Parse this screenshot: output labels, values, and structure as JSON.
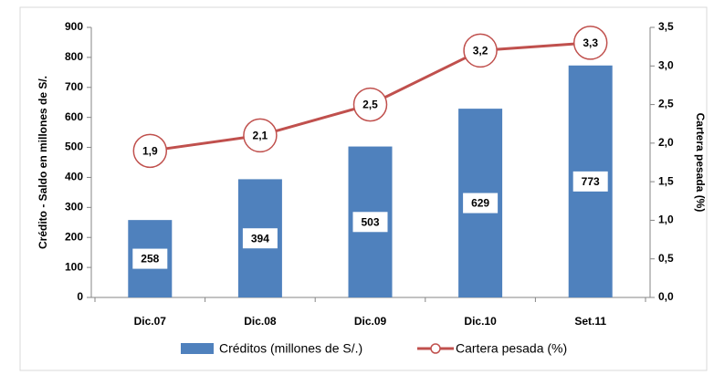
{
  "chart_data": {
    "type": "bar",
    "categories": [
      "Dic.07",
      "Dic.08",
      "Dic.09",
      "Dic.10",
      "Set.11"
    ],
    "series": [
      {
        "name": "Créditos (millones de S/.)",
        "color": "#4f81bd",
        "values": [
          258,
          394,
          503,
          629,
          773
        ]
      },
      {
        "name": "Cartera pesada (%)",
        "type": "line",
        "color": "#c0504d",
        "axis": "y2",
        "values": [
          1.9,
          2.1,
          2.5,
          3.2,
          3.3
        ],
        "value_labels": [
          "1,9",
          "2,1",
          "2,5",
          "3,2",
          "3,3"
        ]
      }
    ],
    "ylabel": "Crédito - Saldo en millones de S/.",
    "y2label": "Cartera pesada (%)",
    "ylim": [
      0,
      900
    ],
    "yticks": [
      0,
      100,
      200,
      300,
      400,
      500,
      600,
      700,
      800,
      900
    ],
    "y2lim": [
      0,
      3.5
    ],
    "y2ticks": [
      {
        "value": 0,
        "label": "0,0"
      },
      {
        "value": 0.5,
        "label": "0,5"
      },
      {
        "value": 1,
        "label": "1,0"
      },
      {
        "value": 1.5,
        "label": "1,5"
      },
      {
        "value": 2,
        "label": "2,0"
      },
      {
        "value": 2.5,
        "label": "2,5"
      },
      {
        "value": 3,
        "label": "3,0"
      },
      {
        "value": 3.5,
        "label": "3,5"
      }
    ],
    "legend": "bottom"
  }
}
